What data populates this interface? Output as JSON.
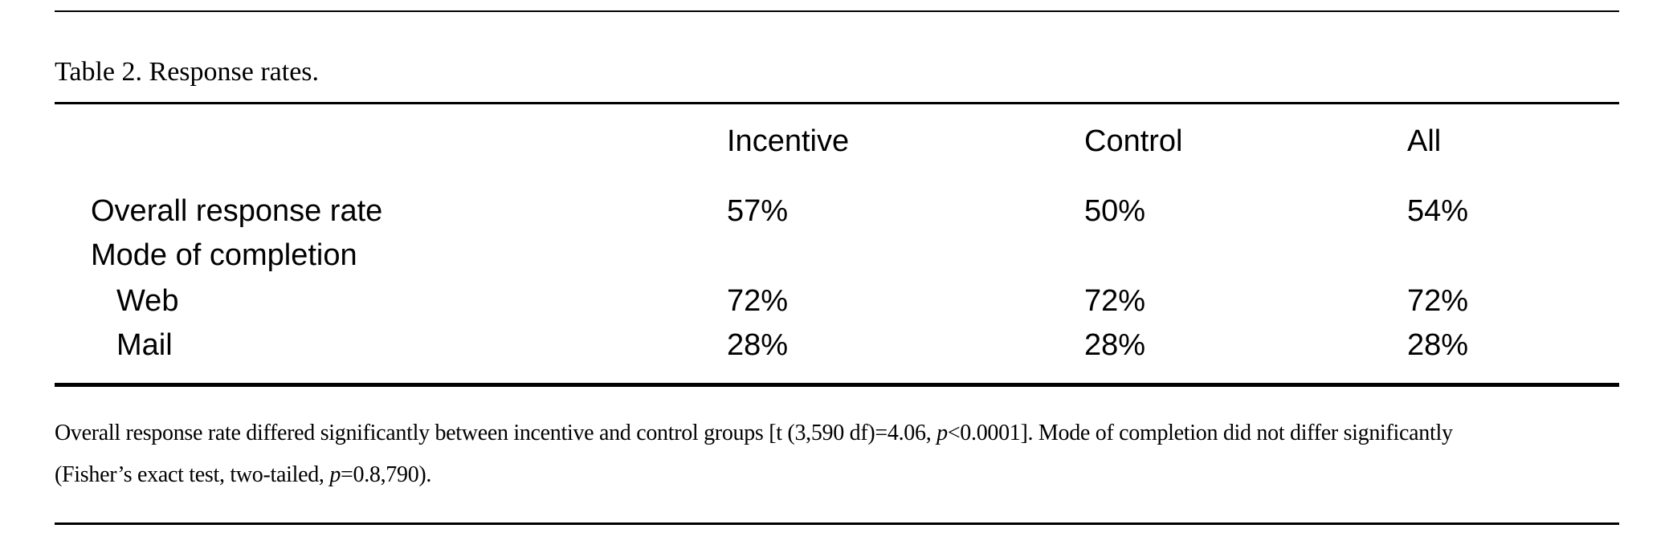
{
  "colors": {
    "background": "#ffffff",
    "text": "#000000",
    "rule": "#000000"
  },
  "table": {
    "caption": "Table 2. Response rates.",
    "columns": [
      "Incentive",
      "Control",
      "All"
    ],
    "rows": [
      {
        "label": "Overall response rate",
        "indent": 1,
        "values": [
          "57%",
          "50%",
          "54%"
        ]
      },
      {
        "label": "Mode of completion",
        "indent": 1,
        "values": [
          "",
          "",
          ""
        ]
      },
      {
        "label": "Web",
        "indent": 2,
        "values": [
          "72%",
          "72%",
          "72%"
        ]
      },
      {
        "label": "Mail",
        "indent": 2,
        "values": [
          "28%",
          "28%",
          "28%"
        ]
      }
    ]
  },
  "note": {
    "line1": {
      "pre": "Overall response rate differed significantly between incentive and control groups [t (3,590 df)=4.06, ",
      "p": "p",
      "post": "<0.0001]. Mode of completion did not differ significantly"
    },
    "line2": {
      "pre": "(Fisher’s exact test, two-tailed, ",
      "p": "p",
      "post": "=0.8,790)."
    }
  }
}
